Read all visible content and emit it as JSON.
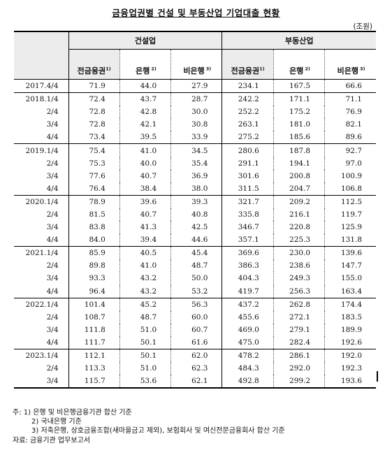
{
  "title": "금융업권별 건설 및 부동산업 기업대출 현황",
  "unit": "(조원)",
  "header": {
    "group_construction": "건설업",
    "group_realestate": "부동산업",
    "col_total": "전금융권",
    "col_total_note": "1)",
    "col_bank": "은행",
    "col_bank_note": "2)",
    "col_nonbank": "비은행",
    "col_nonbank_note": "3)"
  },
  "rows": [
    {
      "period": "2017.4/4",
      "c_total": "71.9",
      "c_bank": "44.0",
      "c_nonbank": "27.9",
      "r_total": "234.1",
      "r_bank": "167.5",
      "r_nonbank": "66.6"
    },
    {
      "period": "2018.1/4",
      "c_total": "72.4",
      "c_bank": "43.7",
      "c_nonbank": "28.7",
      "r_total": "242.2",
      "r_bank": "171.1",
      "r_nonbank": "71.1"
    },
    {
      "period": "2/4",
      "c_total": "72.8",
      "c_bank": "42.8",
      "c_nonbank": "30.0",
      "r_total": "252.2",
      "r_bank": "175.2",
      "r_nonbank": "76.9"
    },
    {
      "period": "3/4",
      "c_total": "72.8",
      "c_bank": "42.1",
      "c_nonbank": "30.8",
      "r_total": "263.1",
      "r_bank": "181.0",
      "r_nonbank": "82.1"
    },
    {
      "period": "4/4",
      "c_total": "73.4",
      "c_bank": "39.5",
      "c_nonbank": "33.9",
      "r_total": "275.2",
      "r_bank": "185.6",
      "r_nonbank": "89.6"
    },
    {
      "period": "2019.1/4",
      "c_total": "75.4",
      "c_bank": "41.0",
      "c_nonbank": "34.5",
      "r_total": "280.6",
      "r_bank": "187.8",
      "r_nonbank": "92.7"
    },
    {
      "period": "2/4",
      "c_total": "75.3",
      "c_bank": "40.0",
      "c_nonbank": "35.4",
      "r_total": "291.1",
      "r_bank": "194.1",
      "r_nonbank": "97.0"
    },
    {
      "period": "3/4",
      "c_total": "77.6",
      "c_bank": "40.7",
      "c_nonbank": "36.9",
      "r_total": "301.6",
      "r_bank": "200.8",
      "r_nonbank": "100.9"
    },
    {
      "period": "4/4",
      "c_total": "76.4",
      "c_bank": "38.4",
      "c_nonbank": "38.0",
      "r_total": "311.5",
      "r_bank": "204.7",
      "r_nonbank": "106.8"
    },
    {
      "period": "2020.1/4",
      "c_total": "78.9",
      "c_bank": "39.6",
      "c_nonbank": "39.3",
      "r_total": "321.7",
      "r_bank": "209.2",
      "r_nonbank": "112.5"
    },
    {
      "period": "2/4",
      "c_total": "81.5",
      "c_bank": "40.7",
      "c_nonbank": "40.8",
      "r_total": "335.8",
      "r_bank": "216.1",
      "r_nonbank": "119.7"
    },
    {
      "period": "3/4",
      "c_total": "83.8",
      "c_bank": "41.3",
      "c_nonbank": "42.5",
      "r_total": "346.7",
      "r_bank": "220.8",
      "r_nonbank": "125.9"
    },
    {
      "period": "4/4",
      "c_total": "84.0",
      "c_bank": "39.4",
      "c_nonbank": "44.6",
      "r_total": "357.1",
      "r_bank": "225.3",
      "r_nonbank": "131.8"
    },
    {
      "period": "2021.1/4",
      "c_total": "85.9",
      "c_bank": "40.5",
      "c_nonbank": "45.4",
      "r_total": "369.6",
      "r_bank": "230.0",
      "r_nonbank": "139.6"
    },
    {
      "period": "2/4",
      "c_total": "89.8",
      "c_bank": "41.0",
      "c_nonbank": "48.7",
      "r_total": "386.3",
      "r_bank": "238.6",
      "r_nonbank": "147.7"
    },
    {
      "period": "3/4",
      "c_total": "93.3",
      "c_bank": "43.2",
      "c_nonbank": "50.0",
      "r_total": "404.3",
      "r_bank": "249.3",
      "r_nonbank": "155.0"
    },
    {
      "period": "4/4",
      "c_total": "96.4",
      "c_bank": "43.2",
      "c_nonbank": "53.2",
      "r_total": "419.7",
      "r_bank": "256.3",
      "r_nonbank": "163.4"
    },
    {
      "period": "2022.1/4",
      "c_total": "101.4",
      "c_bank": "45.2",
      "c_nonbank": "56.3",
      "r_total": "437.2",
      "r_bank": "262.8",
      "r_nonbank": "174.4"
    },
    {
      "period": "2/4",
      "c_total": "108.7",
      "c_bank": "48.7",
      "c_nonbank": "60.0",
      "r_total": "455.6",
      "r_bank": "272.1",
      "r_nonbank": "183.5"
    },
    {
      "period": "3/4",
      "c_total": "111.8",
      "c_bank": "51.0",
      "c_nonbank": "60.7",
      "r_total": "469.0",
      "r_bank": "279.1",
      "r_nonbank": "189.9"
    },
    {
      "period": "4/4",
      "c_total": "111.7",
      "c_bank": "50.1",
      "c_nonbank": "61.6",
      "r_total": "475.0",
      "r_bank": "282.4",
      "r_nonbank": "192.6"
    },
    {
      "period": "2023.1/4",
      "c_total": "112.1",
      "c_bank": "50.1",
      "c_nonbank": "62.0",
      "r_total": "478.2",
      "r_bank": "286.1",
      "r_nonbank": "192.0"
    },
    {
      "period": "2/4",
      "c_total": "113.3",
      "c_bank": "51.0",
      "c_nonbank": "62.3",
      "r_total": "484.3",
      "r_bank": "292.0",
      "r_nonbank": "192.3"
    },
    {
      "period": "3/4",
      "c_total": "115.7",
      "c_bank": "53.6",
      "c_nonbank": "62.1",
      "r_total": "492.8",
      "r_bank": "299.2",
      "r_nonbank": "193.6"
    }
  ],
  "notes": [
    "주: 1) 은행 및 비은행금융기관 합산 기준",
    "2) 국내은행 기준",
    "3) 저축은행, 상호금융조합(새마을금고 제외), 보험회사 및 여신전문금융회사 합산 기준",
    "자료: 금융기관 업무보고서"
  ],
  "colors": {
    "header_fill": "#ececec",
    "rule": "#000000"
  }
}
